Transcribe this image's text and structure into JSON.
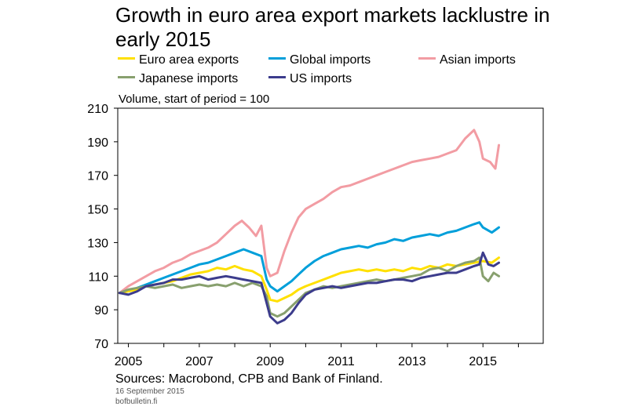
{
  "colors": {
    "euro": "#ffe000",
    "global": "#009fda",
    "asian": "#f29ca3",
    "japanese": "#88a06e",
    "us": "#3c3c8c"
  },
  "chart_data": {
    "type": "line",
    "title": "Growth in euro area export markets lacklustre in early 2015",
    "ylabel": "Volume, start of period = 100",
    "ylim": [
      70,
      210
    ],
    "yticks": [
      70,
      90,
      110,
      130,
      150,
      170,
      190,
      210
    ],
    "xlim": [
      2004.7,
      2016.7
    ],
    "xticks": [
      2005,
      2007,
      2009,
      2011,
      2013,
      2015
    ],
    "grid": false,
    "legend_position": "top",
    "series": [
      {
        "name": "Euro area exports",
        "color": "#ffe000",
        "x": [
          2004.75,
          2005,
          2005.25,
          2005.5,
          2005.75,
          2006,
          2006.25,
          2006.5,
          2006.75,
          2007,
          2007.25,
          2007.5,
          2007.75,
          2008,
          2008.25,
          2008.5,
          2008.75,
          2008.9,
          2009,
          2009.2,
          2009.4,
          2009.6,
          2009.8,
          2010,
          2010.25,
          2010.5,
          2010.75,
          2011,
          2011.25,
          2011.5,
          2011.75,
          2012,
          2012.25,
          2012.5,
          2012.75,
          2013,
          2013.25,
          2013.5,
          2013.75,
          2014,
          2014.25,
          2014.5,
          2014.75,
          2015,
          2015.25,
          2015.45
        ],
        "y": [
          100,
          101,
          102,
          104,
          105,
          106,
          107,
          109,
          111,
          112,
          113,
          115,
          114,
          116,
          114,
          113,
          110,
          102,
          96,
          95,
          97,
          99,
          102,
          104,
          106,
          108,
          110,
          112,
          113,
          114,
          113,
          114,
          113,
          114,
          113,
          115,
          114,
          116,
          115,
          117,
          116,
          117,
          118,
          119,
          118,
          121
        ]
      },
      {
        "name": "Global imports",
        "color": "#009fda",
        "x": [
          2004.75,
          2005,
          2005.25,
          2005.5,
          2005.75,
          2006,
          2006.25,
          2006.5,
          2006.75,
          2007,
          2007.25,
          2007.5,
          2007.75,
          2008,
          2008.25,
          2008.5,
          2008.75,
          2008.9,
          2009,
          2009.2,
          2009.4,
          2009.6,
          2009.8,
          2010,
          2010.25,
          2010.5,
          2010.75,
          2011,
          2011.25,
          2011.5,
          2011.75,
          2012,
          2012.25,
          2012.5,
          2012.75,
          2013,
          2013.25,
          2013.5,
          2013.75,
          2014,
          2014.25,
          2014.5,
          2014.75,
          2014.9,
          2015,
          2015.25,
          2015.45
        ],
        "y": [
          100,
          101,
          103,
          105,
          107,
          109,
          111,
          113,
          115,
          117,
          118,
          120,
          122,
          124,
          126,
          124,
          122,
          108,
          104,
          101,
          104,
          107,
          111,
          115,
          119,
          122,
          124,
          126,
          127,
          128,
          127,
          129,
          130,
          132,
          131,
          133,
          134,
          135,
          134,
          136,
          137,
          139,
          141,
          142,
          139,
          136,
          139
        ]
      },
      {
        "name": "Asian imports",
        "color": "#f29ca3",
        "x": [
          2004.75,
          2005,
          2005.25,
          2005.5,
          2005.75,
          2006,
          2006.25,
          2006.5,
          2006.75,
          2007,
          2007.25,
          2007.5,
          2007.75,
          2008,
          2008.2,
          2008.4,
          2008.6,
          2008.75,
          2008.9,
          2009,
          2009.2,
          2009.4,
          2009.6,
          2009.8,
          2010,
          2010.25,
          2010.5,
          2010.75,
          2011,
          2011.25,
          2011.5,
          2011.75,
          2012,
          2012.25,
          2012.5,
          2012.75,
          2013,
          2013.25,
          2013.5,
          2013.75,
          2014,
          2014.25,
          2014.5,
          2014.75,
          2014.9,
          2015,
          2015.2,
          2015.35,
          2015.45
        ],
        "y": [
          100,
          104,
          107,
          110,
          113,
          115,
          118,
          120,
          123,
          125,
          127,
          130,
          135,
          140,
          143,
          139,
          134,
          140,
          115,
          110,
          112,
          125,
          136,
          145,
          150,
          153,
          156,
          160,
          163,
          164,
          166,
          168,
          170,
          172,
          174,
          176,
          178,
          179,
          180,
          181,
          183,
          185,
          192,
          197,
          190,
          180,
          178,
          174,
          188
        ]
      },
      {
        "name": "Japanese imports",
        "color": "#88a06e",
        "x": [
          2004.75,
          2005,
          2005.25,
          2005.5,
          2005.75,
          2006,
          2006.25,
          2006.5,
          2006.75,
          2007,
          2007.25,
          2007.5,
          2007.75,
          2008,
          2008.25,
          2008.5,
          2008.75,
          2008.9,
          2009,
          2009.2,
          2009.4,
          2009.6,
          2009.8,
          2010,
          2010.25,
          2010.5,
          2010.75,
          2011,
          2011.25,
          2011.5,
          2011.75,
          2012,
          2012.25,
          2012.5,
          2012.75,
          2013,
          2013.25,
          2013.5,
          2013.75,
          2014,
          2014.25,
          2014.5,
          2014.75,
          2014.9,
          2015,
          2015.15,
          2015.3,
          2015.45
        ],
        "y": [
          100,
          102,
          103,
          104,
          103,
          104,
          105,
          103,
          104,
          105,
          104,
          105,
          104,
          106,
          104,
          106,
          104,
          98,
          88,
          86,
          88,
          92,
          96,
          100,
          102,
          104,
          103,
          104,
          105,
          106,
          107,
          108,
          107,
          108,
          109,
          110,
          111,
          114,
          115,
          113,
          116,
          118,
          119,
          121,
          110,
          107,
          112,
          110
        ]
      },
      {
        "name": "US imports",
        "color": "#3c3c8c",
        "x": [
          2004.75,
          2005,
          2005.25,
          2005.5,
          2005.75,
          2006,
          2006.25,
          2006.5,
          2006.75,
          2007,
          2007.25,
          2007.5,
          2007.75,
          2008,
          2008.25,
          2008.5,
          2008.75,
          2008.9,
          2009,
          2009.2,
          2009.4,
          2009.6,
          2009.8,
          2010,
          2010.25,
          2010.5,
          2010.75,
          2011,
          2011.25,
          2011.5,
          2011.75,
          2012,
          2012.25,
          2012.5,
          2012.75,
          2013,
          2013.25,
          2013.5,
          2013.75,
          2014,
          2014.25,
          2014.5,
          2014.75,
          2014.9,
          2015,
          2015.15,
          2015.3,
          2015.45
        ],
        "y": [
          100,
          99,
          101,
          104,
          105,
          106,
          108,
          108,
          109,
          110,
          108,
          109,
          110,
          109,
          108,
          107,
          106,
          94,
          86,
          82,
          84,
          88,
          94,
          99,
          102,
          103,
          104,
          103,
          104,
          105,
          106,
          106,
          107,
          108,
          108,
          107,
          109,
          110,
          111,
          112,
          112,
          114,
          116,
          117,
          124,
          117,
          116,
          118
        ]
      }
    ]
  },
  "footer": {
    "sources": "Sources: Macrobond, CPB and Bank of Finland.",
    "date": "16 September 2015",
    "site": "bofbulletin.fi"
  }
}
